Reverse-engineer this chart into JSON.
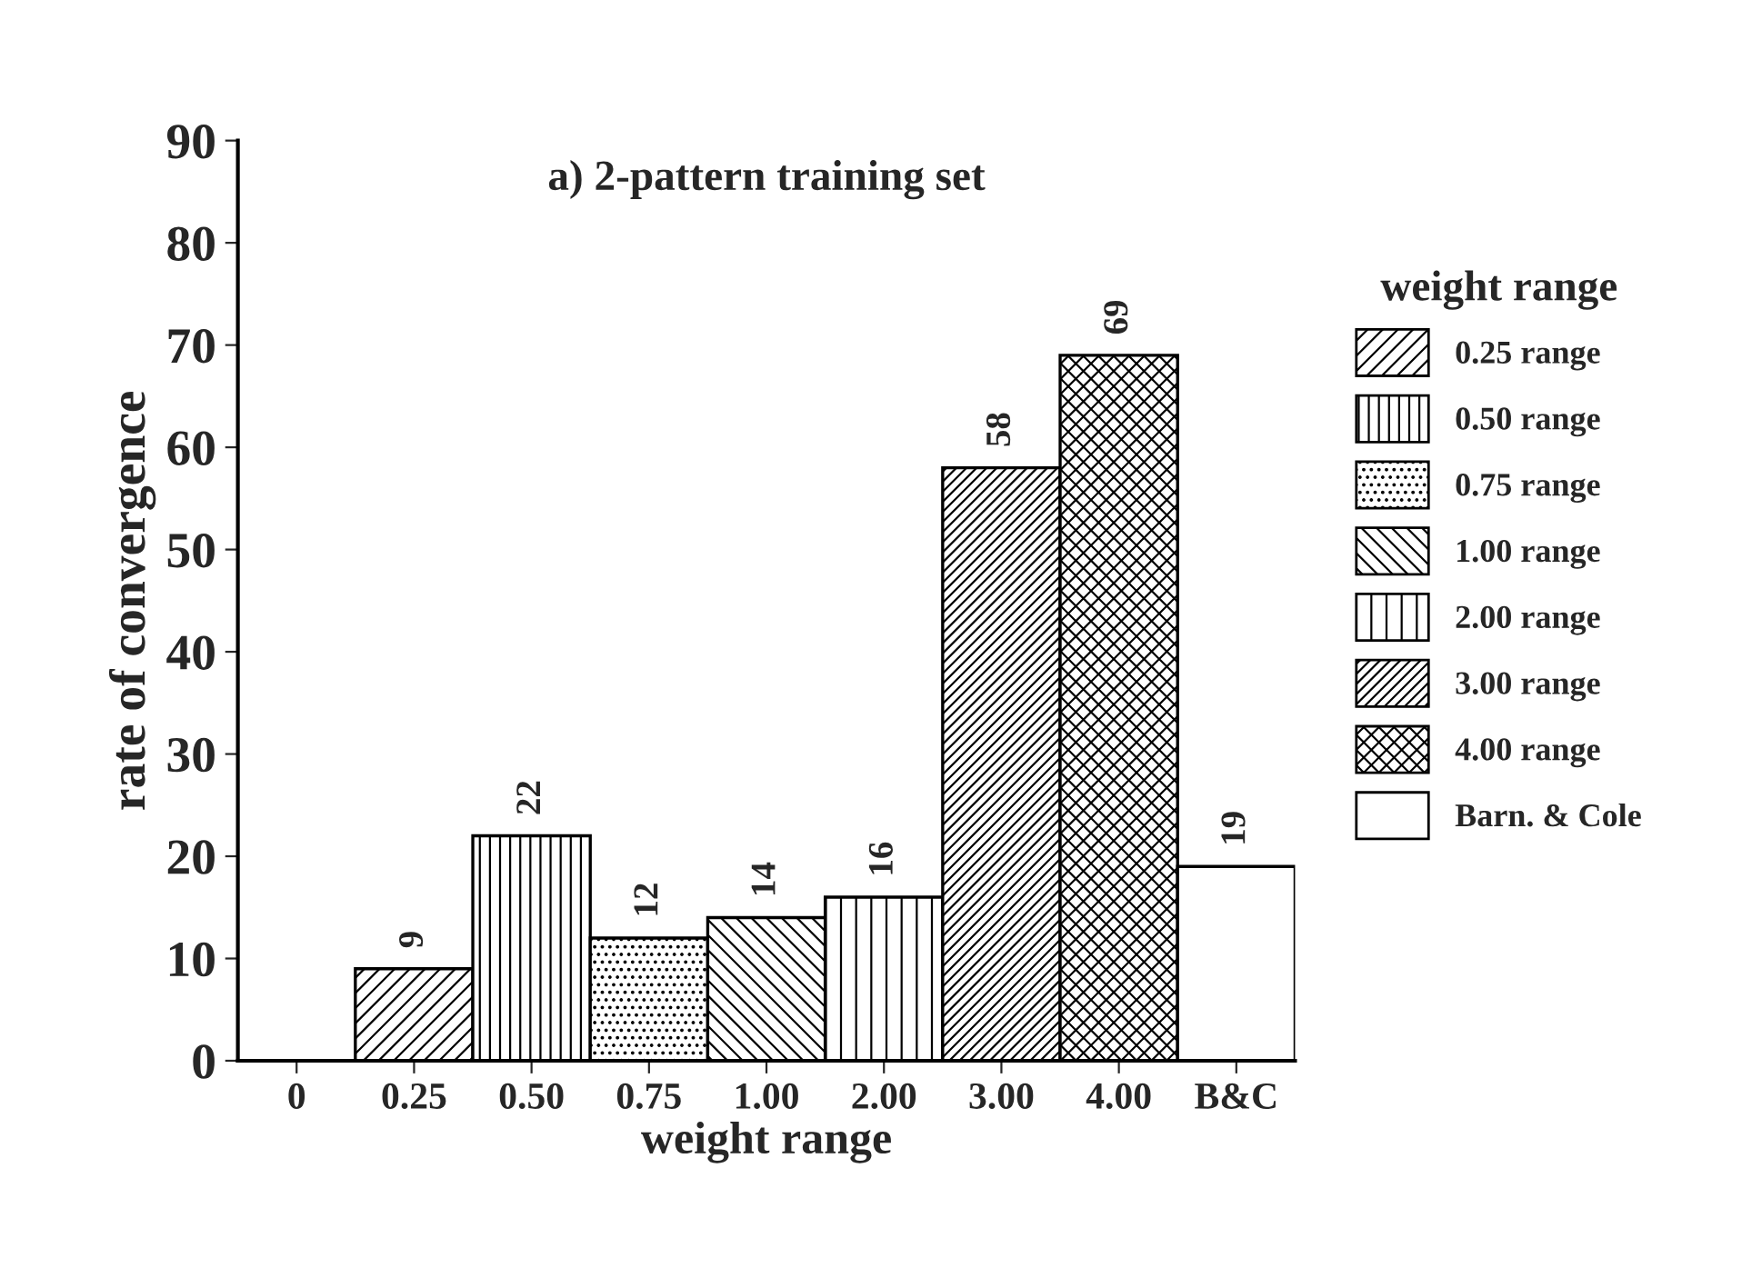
{
  "chart_data": {
    "type": "bar",
    "title": "a) 2-pattern training set",
    "xlabel": "weight range",
    "ylabel": "rate of convergence",
    "legend_title": "weight range",
    "categories": [
      "0",
      "0.25",
      "0.50",
      "0.75",
      "1.00",
      "2.00",
      "3.00",
      "4.00",
      "B&C"
    ],
    "series": [
      {
        "name": "0.25 range",
        "color": "#000000",
        "values": [
          null,
          9,
          null,
          null,
          null,
          null,
          null,
          null,
          null
        ]
      },
      {
        "name": "0.50 range",
        "color": "#000000",
        "values": [
          null,
          null,
          22,
          null,
          null,
          null,
          null,
          null,
          null
        ]
      },
      {
        "name": "0.75 range",
        "color": "#000000",
        "values": [
          null,
          null,
          null,
          12,
          null,
          null,
          null,
          null,
          null
        ]
      },
      {
        "name": "1.00 range",
        "color": "#000000",
        "values": [
          null,
          null,
          null,
          null,
          14,
          null,
          null,
          null,
          null
        ]
      },
      {
        "name": "2.00 range",
        "color": "#000000",
        "values": [
          null,
          null,
          null,
          null,
          null,
          16,
          null,
          null,
          null
        ]
      },
      {
        "name": "3.00 range",
        "color": "#000000",
        "values": [
          null,
          null,
          null,
          null,
          null,
          null,
          58,
          null,
          null
        ]
      },
      {
        "name": "4.00 range",
        "color": "#000000",
        "values": [
          null,
          null,
          null,
          null,
          null,
          null,
          null,
          69,
          null
        ]
      },
      {
        "name": "Barn. & Cole",
        "color": "#ffffff",
        "values": [
          null,
          null,
          null,
          null,
          null,
          null,
          null,
          null,
          19
        ]
      }
    ],
    "ylim": [
      0,
      90
    ],
    "yticks": [
      0,
      10,
      20,
      30,
      40,
      50,
      60,
      70,
      80,
      90
    ],
    "data_labels": true,
    "legend": "right",
    "grid": false
  }
}
